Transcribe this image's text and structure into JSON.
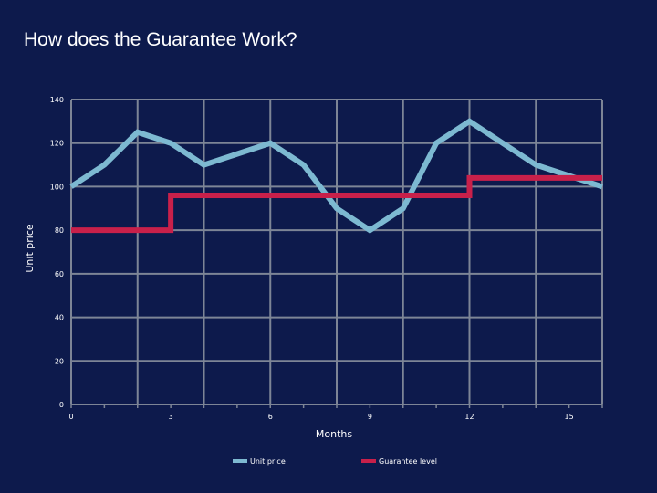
{
  "slide": {
    "title": "How does the Guarantee Work?"
  },
  "chart_data": {
    "type": "line",
    "title": "",
    "xlabel": "Months",
    "ylabel": "Unit price",
    "xlim": [
      0,
      16
    ],
    "ylim": [
      0,
      140
    ],
    "x_ticks": [
      0,
      3,
      6,
      9,
      12,
      15
    ],
    "y_ticks": [
      0,
      20,
      40,
      60,
      80,
      100,
      120,
      140
    ],
    "grid": true,
    "legend_position": "bottom",
    "series": [
      {
        "name": "Unit price",
        "color": "#7db9d1",
        "x": [
          0,
          1,
          2,
          3,
          4,
          5,
          6,
          7,
          8,
          9,
          10,
          11,
          12,
          13,
          14,
          15,
          16
        ],
        "values": [
          100,
          110,
          125,
          120,
          110,
          115,
          120,
          110,
          90,
          80,
          90,
          120,
          130,
          120,
          110,
          105,
          100
        ]
      },
      {
        "name": "Guarantee level",
        "color": "#c8204a",
        "step": "post",
        "x": [
          0,
          3,
          3,
          12,
          12,
          16
        ],
        "values": [
          80,
          80,
          96,
          96,
          104,
          104
        ]
      }
    ]
  }
}
